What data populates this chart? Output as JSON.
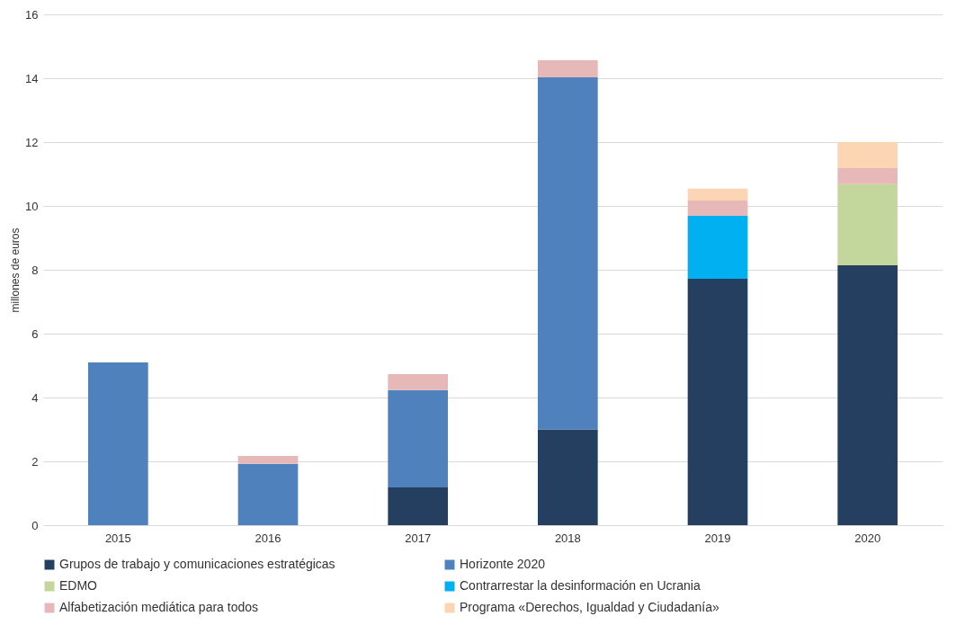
{
  "chart_data": {
    "type": "bar",
    "ylabel": "millones de euros",
    "categories": [
      "2015",
      "2016",
      "2017",
      "2018",
      "2019",
      "2020"
    ],
    "stacked": true,
    "series": [
      {
        "name": "Grupos de trabajo y comunicaciones estratégicas",
        "color": "#243f60",
        "values": [
          null,
          null,
          1.18,
          3.0,
          7.72,
          8.14
        ]
      },
      {
        "name": "Horizonte 2020",
        "color": "#4f81bd",
        "values": [
          5.1,
          1.92,
          3.05,
          11.03,
          null,
          null
        ]
      },
      {
        "name": "EDMO",
        "color": "#c3d69b",
        "values": [
          null,
          null,
          null,
          null,
          null,
          2.54
        ]
      },
      {
        "name": "Contrarrestar la desinformación en Ucrania",
        "color": "#00b0f0",
        "values": [
          null,
          null,
          null,
          null,
          1.97,
          null
        ]
      },
      {
        "name": "Alfabetización mediática para todos",
        "color": "#e6b9b8",
        "values": [
          null,
          0.25,
          0.5,
          0.53,
          0.48,
          0.5
        ]
      },
      {
        "name": "Programa «Derechos, Igualdad y Ciudadanía»",
        "color": "#fcd5b5",
        "values": [
          null,
          null,
          null,
          null,
          0.37,
          0.82
        ]
      }
    ],
    "ylim": [
      0,
      16
    ],
    "yticks": [
      0,
      2,
      4,
      6,
      8,
      10,
      12,
      14,
      16
    ],
    "grid": "y",
    "legend": "bottom"
  }
}
